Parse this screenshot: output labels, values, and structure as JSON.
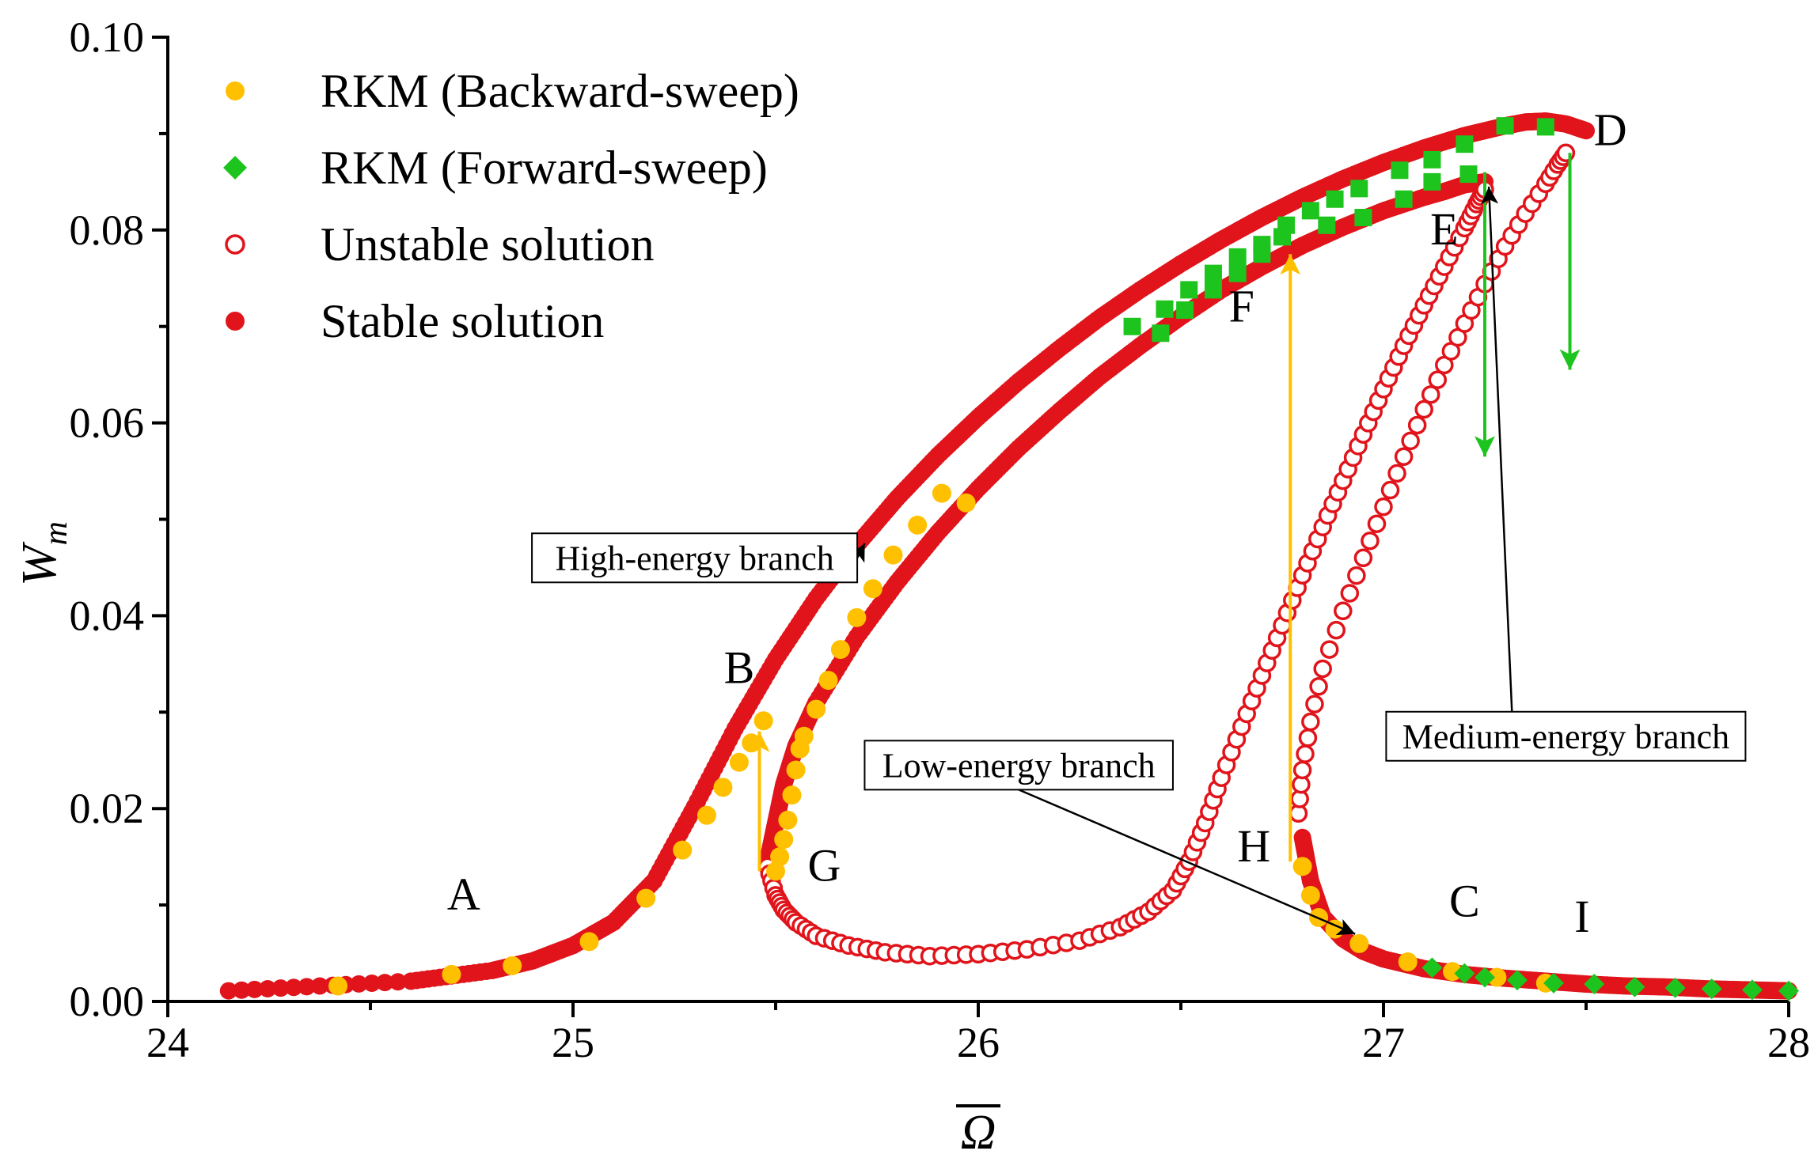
{
  "chart_data": {
    "type": "scatter",
    "xlabel": "Ω",
    "ylabel": "W",
    "ylabel_subscript": "m",
    "xlim": [
      24,
      28
    ],
    "ylim": [
      0,
      0.1
    ],
    "x_ticks": [
      24,
      25,
      26,
      27,
      28
    ],
    "x_tick_labels": [
      "24",
      "25",
      "26",
      "27",
      "28"
    ],
    "y_ticks": [
      0,
      0.02,
      0.04,
      0.06,
      0.08,
      0.1
    ],
    "y_tick_labels": [
      "0.00",
      "0.02",
      "0.04",
      "0.06",
      "0.08",
      "0.10"
    ],
    "legend_position": "top-left",
    "colors": {
      "red": "#e0141a",
      "orange": "#ffc000",
      "green": "#1ec41e",
      "black": "#000000"
    },
    "legend": [
      {
        "label": "RKM (Backward-sweep)",
        "marker": "filled-circle",
        "color": "#ffc000"
      },
      {
        "label": "RKM (Forward-sweep)",
        "marker": "diamond",
        "color": "#1ec41e"
      },
      {
        "label": "Unstable solution",
        "marker": "open-circle",
        "color": "#e0141a"
      },
      {
        "label": "Stable solution",
        "marker": "filled-circle",
        "color": "#e0141a"
      }
    ],
    "series": [
      {
        "name": "Stable solution",
        "role": "stable_lower",
        "x": [
          24.15,
          24.6,
          24.8,
          24.9,
          25.0,
          25.1,
          25.2,
          25.3,
          25.4,
          25.5,
          25.6,
          25.7,
          25.8,
          25.9,
          26.0,
          26.1,
          26.2,
          26.3,
          26.4,
          26.5,
          26.6,
          26.7,
          26.8,
          26.9,
          27.0,
          27.1,
          27.2,
          27.3,
          27.35,
          27.4,
          27.45,
          27.5
        ],
        "y": [
          0.0011,
          0.0021,
          0.0032,
          0.0042,
          0.0058,
          0.0082,
          0.0125,
          0.0202,
          0.0283,
          0.0355,
          0.0418,
          0.0473,
          0.0522,
          0.0566,
          0.0606,
          0.0643,
          0.0677,
          0.0709,
          0.0738,
          0.0765,
          0.079,
          0.0813,
          0.0834,
          0.0853,
          0.087,
          0.0885,
          0.0898,
          0.0908,
          0.0912,
          0.0913,
          0.091,
          0.0903
        ]
      },
      {
        "name": "Stable solution",
        "role": "stable_inner",
        "x": [
          25.48,
          25.5,
          25.52,
          25.55,
          25.6,
          25.7,
          25.8,
          25.9,
          26.0,
          26.1,
          26.2,
          26.3,
          26.4,
          26.5,
          26.6,
          26.7,
          26.8,
          26.9,
          27.0,
          27.1,
          27.15,
          27.2,
          27.25
        ],
        "y": [
          0.0145,
          0.0185,
          0.0225,
          0.0265,
          0.031,
          0.0378,
          0.0435,
          0.0486,
          0.0532,
          0.0574,
          0.0612,
          0.0648,
          0.068,
          0.071,
          0.0738,
          0.0762,
          0.0784,
          0.0803,
          0.082,
          0.0834,
          0.084,
          0.0847,
          0.085
        ]
      },
      {
        "name": "Stable solution",
        "role": "stable_right",
        "x": [
          26.8,
          26.82,
          26.85,
          26.9,
          26.95,
          27.0,
          27.1,
          27.2,
          27.3,
          27.4,
          27.5,
          27.6,
          27.7,
          27.8,
          27.9,
          28.0
        ],
        "y": [
          0.017,
          0.0125,
          0.0088,
          0.0065,
          0.0052,
          0.0044,
          0.0034,
          0.0028,
          0.0024,
          0.0021,
          0.0018,
          0.0016,
          0.0015,
          0.0013,
          0.0012,
          0.0011
        ]
      },
      {
        "name": "Unstable solution",
        "role": "unstable_G",
        "x": [
          25.48,
          25.5,
          25.52,
          25.55,
          25.6,
          25.68,
          25.77,
          25.88,
          26.0,
          26.12,
          26.25,
          26.35,
          26.42,
          26.48,
          26.52,
          26.56,
          26.6,
          26.65,
          26.7,
          26.75,
          26.8,
          26.85,
          26.9,
          26.95,
          27.0,
          27.05,
          27.1,
          27.15,
          27.2,
          27.23,
          27.25
        ],
        "y": [
          0.014,
          0.011,
          0.0095,
          0.0082,
          0.0068,
          0.0058,
          0.0051,
          0.0047,
          0.0049,
          0.0054,
          0.0063,
          0.0077,
          0.0093,
          0.0115,
          0.0145,
          0.0185,
          0.0232,
          0.0285,
          0.0338,
          0.039,
          0.0442,
          0.0492,
          0.054,
          0.0588,
          0.0635,
          0.068,
          0.0722,
          0.0762,
          0.0802,
          0.0827,
          0.0842
        ]
      },
      {
        "name": "Unstable solution",
        "role": "unstable_H",
        "x": [
          26.79,
          26.8,
          26.82,
          26.85,
          26.9,
          26.95,
          27.0,
          27.05,
          27.1,
          27.15,
          27.2,
          27.25,
          27.3,
          27.35,
          27.4,
          27.43,
          27.45
        ],
        "y": [
          0.0195,
          0.024,
          0.029,
          0.0345,
          0.0405,
          0.046,
          0.0513,
          0.0565,
          0.0614,
          0.066,
          0.0703,
          0.0744,
          0.0783,
          0.0817,
          0.0848,
          0.0868,
          0.088
        ]
      },
      {
        "name": "RKM (Backward-sweep)",
        "role": "backward_lower",
        "x": [
          24.42,
          24.7,
          24.85,
          25.04,
          25.18,
          25.27,
          25.33,
          25.37,
          25.41,
          25.44,
          25.47
        ],
        "y": [
          0.0016,
          0.0028,
          0.0037,
          0.0062,
          0.0107,
          0.0157,
          0.0193,
          0.0222,
          0.0248,
          0.0268,
          0.0291
        ]
      },
      {
        "name": "RKM (Backward-sweep)",
        "role": "backward_upper",
        "x": [
          25.5,
          25.51,
          25.52,
          25.53,
          25.54,
          25.55,
          25.56,
          25.57,
          25.6,
          25.63,
          25.66,
          25.7,
          25.74,
          25.79,
          25.85,
          25.91,
          25.97
        ],
        "y": [
          0.0135,
          0.015,
          0.0168,
          0.0188,
          0.0214,
          0.024,
          0.0262,
          0.0275,
          0.0303,
          0.0333,
          0.0365,
          0.0398,
          0.0428,
          0.0463,
          0.0494,
          0.0527,
          0.0517
        ]
      },
      {
        "name": "RKM (Backward-sweep)",
        "role": "backward_right",
        "x": [
          26.8,
          26.82,
          26.84,
          26.88,
          26.94,
          27.06,
          27.17,
          27.28,
          27.4
        ],
        "y": [
          0.014,
          0.011,
          0.0087,
          0.0075,
          0.006,
          0.0041,
          0.0031,
          0.0025,
          0.0019
        ]
      },
      {
        "name": "RKM (Forward-sweep)",
        "role": "forward_upper",
        "x": [
          26.38,
          26.46,
          26.52,
          26.58,
          26.64,
          26.7,
          26.76,
          26.82,
          26.88,
          26.94,
          27.04,
          27.12,
          27.2,
          27.3,
          27.4
        ],
        "y": [
          0.07,
          0.0718,
          0.0738,
          0.0755,
          0.0772,
          0.0785,
          0.0805,
          0.082,
          0.0832,
          0.0843,
          0.0862,
          0.0873,
          0.0889,
          0.0908,
          0.0907
        ]
      },
      {
        "name": "RKM (Forward-sweep)",
        "role": "forward_inner",
        "x": [
          26.45,
          26.51,
          26.58,
          26.64,
          26.7,
          26.75,
          26.86,
          26.95,
          27.05,
          27.12,
          27.21
        ],
        "y": [
          0.0693,
          0.0717,
          0.0738,
          0.0755,
          0.0775,
          0.0793,
          0.0805,
          0.0813,
          0.0832,
          0.085,
          0.0858
        ]
      },
      {
        "name": "RKM (Forward-sweep)",
        "role": "forward_right",
        "x": [
          27.12,
          27.2,
          27.25,
          27.33,
          27.42,
          27.52,
          27.62,
          27.72,
          27.81,
          27.91,
          28.0
        ],
        "y": [
          0.0035,
          0.0029,
          0.0025,
          0.0022,
          0.0019,
          0.0018,
          0.0015,
          0.0014,
          0.0013,
          0.0012,
          0.0011
        ]
      }
    ],
    "jump_arrows": [
      {
        "name": "jump-up-B",
        "color": "#ffc000",
        "x": 25.46,
        "y_from": 0.0135,
        "y_to": 0.028
      },
      {
        "name": "jump-up-F",
        "color": "#ffc000",
        "x": 26.77,
        "y_from": 0.0145,
        "y_to": 0.0775
      },
      {
        "name": "jump-down-E",
        "color": "#1ec41e",
        "x": 27.25,
        "y_from": 0.086,
        "y_to": 0.0565
      },
      {
        "name": "jump-down-D",
        "color": "#1ec41e",
        "x": 27.46,
        "y_from": 0.088,
        "y_to": 0.0655
      }
    ],
    "point_labels": [
      {
        "text": "A",
        "x": 24.73,
        "y": 0.0095
      },
      {
        "text": "B",
        "x": 25.41,
        "y": 0.033
      },
      {
        "text": "C",
        "x": 27.2,
        "y": 0.0088
      },
      {
        "text": "D",
        "x": 27.56,
        "y": 0.0888
      },
      {
        "text": "E",
        "x": 27.15,
        "y": 0.0785
      },
      {
        "text": "F",
        "x": 26.65,
        "y": 0.0705
      },
      {
        "text": "G",
        "x": 25.62,
        "y": 0.0125
      },
      {
        "text": "H",
        "x": 26.68,
        "y": 0.0145
      },
      {
        "text": "I",
        "x": 27.49,
        "y": 0.0072
      }
    ],
    "annotations": [
      {
        "text": "High-energy branch",
        "box_x": 25.3,
        "box_y": 0.046,
        "arrow_to": [
          25.72,
          0.0475
        ]
      },
      {
        "text": "Low-energy branch",
        "box_x": 26.1,
        "box_y": 0.0245,
        "arrow_to": [
          26.93,
          0.007
        ]
      },
      {
        "text": "Medium-energy branch",
        "box_x": 27.45,
        "box_y": 0.0275,
        "arrow_to": [
          27.26,
          0.0845
        ]
      }
    ]
  }
}
